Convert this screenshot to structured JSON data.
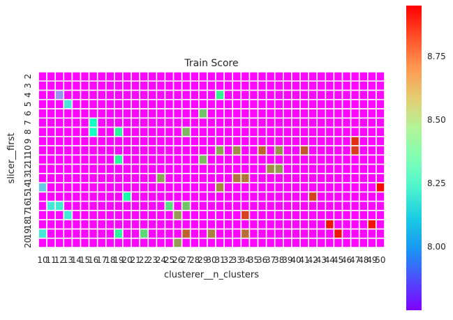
{
  "chart_data": {
    "type": "heatmap",
    "title": "Train Score",
    "xlabel": "clusterer__n_clusters",
    "ylabel": "slicer__first",
    "x": [
      10,
      11,
      12,
      13,
      14,
      15,
      16,
      17,
      18,
      19,
      20,
      21,
      22,
      23,
      24,
      25,
      26,
      27,
      28,
      29,
      30,
      31,
      32,
      33,
      34,
      35,
      36,
      37,
      38,
      39,
      40,
      41,
      42,
      43,
      44,
      45,
      46,
      47,
      48,
      49,
      50
    ],
    "y": [
      2,
      3,
      4,
      5,
      6,
      7,
      8,
      9,
      10,
      11,
      12,
      13,
      14,
      15,
      16,
      17,
      18,
      19,
      20
    ],
    "colorbar": {
      "min": 7.75,
      "max": 8.95,
      "ticks": [
        8.0,
        8.25,
        8.5,
        8.75
      ]
    },
    "colormap": "rainbow",
    "baseline": 7.76,
    "cells": [
      [
        3,
        8,
        8.15
      ],
      [
        4,
        8,
        7.96
      ],
      [
        4,
        12,
        7.98
      ],
      [
        4,
        31,
        8.48
      ],
      [
        5,
        13,
        8.17
      ],
      [
        6,
        29,
        8.62
      ],
      [
        7,
        16,
        8.3
      ],
      [
        8,
        16,
        8.3
      ],
      [
        8,
        19,
        8.45
      ],
      [
        8,
        27,
        8.65
      ],
      [
        9,
        47,
        8.88
      ],
      [
        10,
        31,
        8.68
      ],
      [
        10,
        33,
        8.73
      ],
      [
        10,
        36,
        8.8
      ],
      [
        10,
        38,
        8.72
      ],
      [
        10,
        41,
        8.82
      ],
      [
        10,
        47,
        8.86
      ],
      [
        11,
        19,
        8.45
      ],
      [
        11,
        29,
        8.64
      ],
      [
        12,
        37,
        8.73
      ],
      [
        12,
        38,
        8.7
      ],
      [
        13,
        24,
        8.68
      ],
      [
        13,
        33,
        8.77
      ],
      [
        13,
        34,
        8.77
      ],
      [
        14,
        10,
        8.1
      ],
      [
        14,
        31,
        8.74
      ],
      [
        14,
        50,
        8.93
      ],
      [
        15,
        20,
        8.4
      ],
      [
        15,
        42,
        8.85
      ],
      [
        16,
        11,
        8.18
      ],
      [
        16,
        12,
        8.2
      ],
      [
        16,
        25,
        8.55
      ],
      [
        16,
        27,
        8.62
      ],
      [
        17,
        13,
        8.2
      ],
      [
        17,
        26,
        8.7
      ],
      [
        17,
        34,
        8.85
      ],
      [
        18,
        44,
        8.92
      ],
      [
        18,
        49,
        8.92
      ],
      [
        19,
        10,
        8.18
      ],
      [
        19,
        19,
        8.45
      ],
      [
        19,
        22,
        8.57
      ],
      [
        19,
        27,
        8.8
      ],
      [
        19,
        30,
        8.75
      ],
      [
        19,
        34,
        8.78
      ],
      [
        19,
        45,
        8.92
      ],
      [
        20,
        26,
        8.7
      ],
      [
        21,
        12,
        8.2
      ],
      [
        21,
        14,
        8.35
      ],
      [
        21,
        15,
        8.35
      ],
      [
        21,
        16,
        8.38
      ],
      [
        21,
        17,
        8.4
      ],
      [
        21,
        18,
        8.42
      ],
      [
        21,
        19,
        8.45
      ],
      [
        21,
        20,
        8.47
      ],
      [
        21,
        21,
        8.48
      ],
      [
        21,
        22,
        8.48
      ],
      [
        21,
        23,
        8.5
      ],
      [
        21,
        25,
        8.65
      ],
      [
        21,
        28,
        8.68
      ],
      [
        21,
        29,
        8.7
      ],
      [
        21,
        31,
        8.75
      ],
      [
        21,
        35,
        8.82
      ],
      [
        21,
        40,
        8.85
      ]
    ]
  }
}
